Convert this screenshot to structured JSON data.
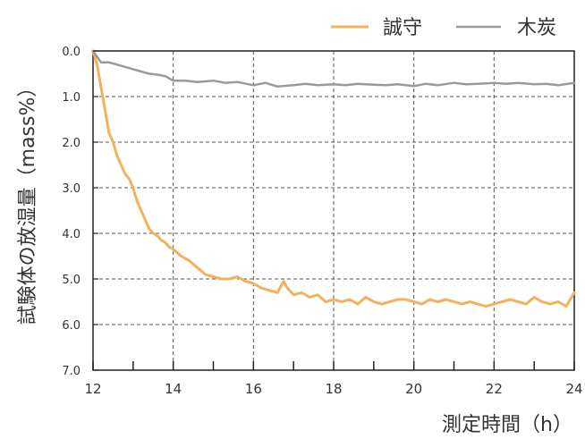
{
  "chart_data": {
    "type": "line",
    "title": "",
    "xlabel": "測定時間（h）",
    "ylabel": "試験体の放湿量（mass%）",
    "xlim": [
      12,
      24
    ],
    "ylim": [
      0,
      7
    ],
    "y_inverted": true,
    "grid": true,
    "legend_position": "top-right",
    "x_ticks": [
      12,
      14,
      16,
      18,
      20,
      22,
      24
    ],
    "x_tick_labels": [
      "12",
      "14",
      "16",
      "18",
      "20",
      "22",
      "24"
    ],
    "y_ticks": [
      0,
      1,
      2,
      3,
      4,
      5,
      6,
      7
    ],
    "y_tick_labels": [
      "0.0",
      "1.0",
      "2.0",
      "3.0",
      "4.0",
      "5.0",
      "6.0",
      "7.0"
    ],
    "series": [
      {
        "name": "誠守",
        "color": "#F2B25C",
        "x": [
          12.0,
          12.1,
          12.2,
          12.3,
          12.4,
          12.5,
          12.6,
          12.7,
          12.8,
          12.9,
          13.0,
          13.1,
          13.2,
          13.3,
          13.4,
          13.5,
          13.6,
          13.7,
          13.8,
          13.9,
          14.0,
          14.2,
          14.4,
          14.6,
          14.8,
          15.0,
          15.2,
          15.4,
          15.6,
          15.8,
          16.0,
          16.2,
          16.4,
          16.6,
          16.75,
          16.85,
          17.0,
          17.2,
          17.4,
          17.6,
          17.8,
          18.0,
          18.2,
          18.4,
          18.6,
          18.8,
          19.0,
          19.2,
          19.4,
          19.6,
          19.8,
          20.0,
          20.2,
          20.4,
          20.6,
          20.8,
          21.0,
          21.2,
          21.4,
          21.6,
          21.8,
          22.0,
          22.2,
          22.4,
          22.6,
          22.8,
          23.0,
          23.2,
          23.4,
          23.6,
          23.8,
          24.0
        ],
        "y": [
          0.0,
          0.3,
          0.8,
          1.3,
          1.8,
          2.0,
          2.3,
          2.5,
          2.7,
          2.8,
          3.0,
          3.3,
          3.5,
          3.7,
          3.9,
          4.0,
          4.05,
          4.15,
          4.2,
          4.3,
          4.35,
          4.5,
          4.6,
          4.75,
          4.9,
          4.95,
          5.0,
          5.0,
          4.95,
          5.05,
          5.1,
          5.2,
          5.25,
          5.3,
          5.05,
          5.2,
          5.35,
          5.3,
          5.4,
          5.35,
          5.5,
          5.45,
          5.5,
          5.45,
          5.55,
          5.4,
          5.5,
          5.55,
          5.5,
          5.45,
          5.45,
          5.5,
          5.55,
          5.45,
          5.5,
          5.45,
          5.5,
          5.55,
          5.5,
          5.55,
          5.6,
          5.55,
          5.5,
          5.45,
          5.5,
          5.55,
          5.4,
          5.5,
          5.55,
          5.5,
          5.6,
          5.3
        ]
      },
      {
        "name": "木炭",
        "color": "#9A9A9A",
        "x": [
          12.0,
          12.2,
          12.4,
          12.6,
          12.8,
          13.0,
          13.2,
          13.4,
          13.6,
          13.8,
          14.0,
          14.3,
          14.6,
          15.0,
          15.3,
          15.6,
          16.0,
          16.3,
          16.6,
          17.0,
          17.3,
          17.6,
          18.0,
          18.3,
          18.6,
          19.0,
          19.3,
          19.6,
          20.0,
          20.3,
          20.6,
          21.0,
          21.3,
          21.6,
          22.0,
          22.3,
          22.6,
          23.0,
          23.3,
          23.6,
          24.0
        ],
        "y": [
          0.0,
          0.25,
          0.25,
          0.3,
          0.35,
          0.4,
          0.45,
          0.5,
          0.52,
          0.55,
          0.65,
          0.65,
          0.68,
          0.65,
          0.7,
          0.68,
          0.75,
          0.7,
          0.78,
          0.75,
          0.72,
          0.75,
          0.73,
          0.75,
          0.72,
          0.74,
          0.75,
          0.73,
          0.77,
          0.72,
          0.75,
          0.7,
          0.73,
          0.72,
          0.7,
          0.72,
          0.7,
          0.73,
          0.72,
          0.75,
          0.7
        ]
      }
    ]
  }
}
